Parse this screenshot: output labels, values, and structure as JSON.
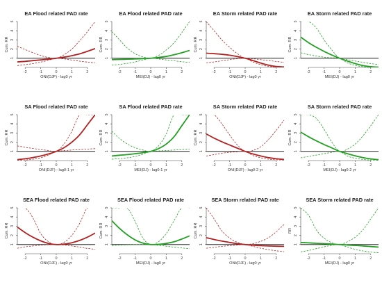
{
  "colors": {
    "ENSO": "#b22222",
    "MEI": "#22a022",
    "reference": "#000000"
  },
  "chart_data": [
    {
      "type": "line",
      "row": 0,
      "col": 0,
      "title": "EA Flood related PAD rate",
      "xlabel": "ONI(DJF) - lag0 yr",
      "ylabel": "Cum. RR",
      "color": "ENSO",
      "xlim": [
        -2.5,
        2.5
      ],
      "ylim": [
        0,
        5
      ],
      "xticks": [
        -2,
        -1,
        0,
        1,
        2
      ],
      "yticks": [
        1,
        2,
        3,
        4,
        5
      ],
      "x": [
        -2.5,
        -2,
        -1.5,
        -1,
        -0.5,
        0,
        0.5,
        1,
        1.5,
        2,
        2.5
      ],
      "series": [
        {
          "role": "estimate",
          "values": [
            0.6,
            0.66,
            0.74,
            0.82,
            0.9,
            1.0,
            1.12,
            1.28,
            1.48,
            1.75,
            2.05
          ]
        },
        {
          "role": "lower",
          "values": [
            0.2,
            0.3,
            0.42,
            0.58,
            0.78,
            1.0,
            0.93,
            0.8,
            0.68,
            0.58,
            0.5
          ]
        },
        {
          "role": "upper",
          "values": [
            2.3,
            1.95,
            1.6,
            1.3,
            1.08,
            1.0,
            1.38,
            2.0,
            2.9,
            3.9,
            5.0
          ]
        }
      ]
    },
    {
      "type": "line",
      "row": 0,
      "col": 1,
      "title": "EA Flood related PAD rate",
      "xlabel": "MEI(DJ) - lag0 yr",
      "ylabel": "Cum. RR",
      "color": "MEI",
      "xlim": [
        -2.5,
        2.5
      ],
      "ylim": [
        0,
        5
      ],
      "xticks": [
        -2,
        -1,
        0,
        1,
        2
      ],
      "yticks": [
        1,
        2,
        3,
        4,
        5
      ],
      "x": [
        -2.5,
        -2,
        -1.5,
        -1,
        -0.5,
        0,
        0.5,
        1,
        1.5,
        2,
        2.5
      ],
      "series": [
        {
          "role": "estimate",
          "values": [
            0.85,
            0.87,
            0.9,
            0.93,
            0.96,
            1.0,
            1.08,
            1.2,
            1.38,
            1.6,
            1.85
          ]
        },
        {
          "role": "lower",
          "values": [
            0.25,
            0.33,
            0.45,
            0.6,
            0.8,
            1.0,
            0.92,
            0.82,
            0.72,
            0.62,
            0.55
          ]
        },
        {
          "role": "upper",
          "values": [
            3.9,
            3.0,
            2.1,
            1.5,
            1.15,
            1.0,
            1.3,
            1.9,
            2.7,
            3.8,
            5.0
          ]
        }
      ]
    },
    {
      "type": "line",
      "row": 0,
      "col": 2,
      "title": "EA Storm related PAD rate",
      "xlabel": "ONI(DJF) - lag0 yr",
      "ylabel": "Cum. RR",
      "color": "ENSO",
      "xlim": [
        -2.5,
        2.5
      ],
      "ylim": [
        0,
        5
      ],
      "xticks": [
        -2,
        -1,
        0,
        1,
        2
      ],
      "yticks": [
        1,
        2,
        3,
        4,
        5
      ],
      "x": [
        -2.5,
        -2,
        -1.5,
        -1,
        -0.5,
        0,
        0.5,
        1,
        1.5,
        2,
        2.5
      ],
      "series": [
        {
          "role": "estimate",
          "values": [
            1.55,
            1.5,
            1.43,
            1.33,
            1.18,
            1.0,
            0.75,
            0.48,
            0.25,
            0.1,
            0.05
          ]
        },
        {
          "role": "lower",
          "values": [
            0.5,
            0.6,
            0.72,
            0.85,
            0.95,
            1.0,
            0.6,
            0.3,
            0.12,
            0.05,
            0.02
          ]
        },
        {
          "role": "upper",
          "values": [
            5.0,
            4.0,
            3.0,
            2.2,
            1.5,
            1.0,
            0.95,
            0.85,
            0.75,
            0.65,
            0.55
          ]
        }
      ]
    },
    {
      "type": "line",
      "row": 0,
      "col": 3,
      "title": "EA Storm related PAD rate",
      "xlabel": "MEI(DJ) - lag0 yr",
      "ylabel": "Cum. RR",
      "color": "MEI",
      "xlim": [
        -2.5,
        2.5
      ],
      "ylim": [
        0,
        5
      ],
      "xticks": [
        -2,
        -1,
        0,
        1,
        2
      ],
      "yticks": [
        1,
        2,
        3,
        4,
        5
      ],
      "x": [
        -2.5,
        -2,
        -1.5,
        -1,
        -0.5,
        0,
        0.5,
        1,
        1.5,
        2,
        2.5
      ],
      "series": [
        {
          "role": "estimate",
          "values": [
            3.3,
            2.7,
            2.2,
            1.75,
            1.35,
            1.0,
            0.7,
            0.42,
            0.2,
            0.08,
            0.03
          ]
        },
        {
          "role": "lower",
          "values": [
            1.6,
            1.4,
            1.25,
            1.12,
            1.05,
            1.0,
            0.5,
            0.22,
            0.08,
            0.03,
            0.01
          ]
        },
        {
          "role": "upper",
          "values": [
            5.0,
            5.0,
            4.3,
            3.0,
            1.9,
            1.0,
            0.85,
            0.7,
            0.55,
            0.42,
            0.32
          ]
        }
      ]
    },
    {
      "type": "line",
      "row": 1,
      "col": 0,
      "title": "SA Flood related PAD rate",
      "xlabel": "ONI(DJF) - lag0-1 yr",
      "ylabel": "Cum. RR",
      "color": "ENSO",
      "xlim": [
        -2.5,
        2.5
      ],
      "ylim": [
        0,
        5
      ],
      "xticks": [
        -2,
        -1,
        0,
        1,
        2
      ],
      "yticks": [
        1,
        2,
        3,
        4,
        5
      ],
      "x": [
        -2.5,
        -2,
        -1.5,
        -1,
        -0.5,
        0,
        0.5,
        1,
        1.5,
        2,
        2.5
      ],
      "series": [
        {
          "role": "estimate",
          "values": [
            0.1,
            0.2,
            0.33,
            0.5,
            0.72,
            1.0,
            1.4,
            2.0,
            2.8,
            3.9,
            5.0
          ]
        },
        {
          "role": "lower",
          "values": [
            0.02,
            0.06,
            0.15,
            0.3,
            0.6,
            1.0,
            1.08,
            1.15,
            1.2,
            1.25,
            1.3
          ]
        },
        {
          "role": "upper",
          "values": [
            1.6,
            1.45,
            1.32,
            1.2,
            1.1,
            1.0,
            1.8,
            3.2,
            5.0,
            5.0,
            5.0
          ]
        }
      ]
    },
    {
      "type": "line",
      "row": 1,
      "col": 1,
      "title": "SA Flood related PAD rate",
      "xlabel": "MEI(DJ) - lag0-1 yr",
      "ylabel": "Cum. RR",
      "color": "MEI",
      "xlim": [
        -2.5,
        2.5
      ],
      "ylim": [
        0,
        5
      ],
      "xticks": [
        -2,
        -1,
        0,
        1,
        2
      ],
      "yticks": [
        1,
        2,
        3,
        4,
        5
      ],
      "x": [
        -2.5,
        -2,
        -1.5,
        -1,
        -0.5,
        0,
        0.5,
        1,
        1.5,
        2,
        2.5
      ],
      "series": [
        {
          "role": "estimate",
          "values": [
            0.5,
            0.58,
            0.65,
            0.75,
            0.86,
            1.0,
            1.3,
            1.8,
            2.6,
            3.8,
            5.0
          ]
        },
        {
          "role": "lower",
          "values": [
            0.15,
            0.22,
            0.3,
            0.45,
            0.7,
            1.0,
            1.05,
            1.1,
            1.15,
            1.2,
            1.25
          ]
        },
        {
          "role": "upper",
          "values": [
            3.2,
            2.4,
            1.8,
            1.4,
            1.15,
            1.0,
            1.6,
            2.9,
            5.0,
            5.0,
            5.0
          ]
        }
      ]
    },
    {
      "type": "line",
      "row": 1,
      "col": 2,
      "title": "SA Storm related PAD rate",
      "xlabel": "ONI(DJF) - lag0-2 yr",
      "ylabel": "Cum. RR",
      "color": "ENSO",
      "xlim": [
        -2.5,
        2.5
      ],
      "ylim": [
        0,
        5
      ],
      "xticks": [
        -2,
        -1,
        0,
        1,
        2
      ],
      "yticks": [
        1,
        2,
        3,
        4,
        5
      ],
      "x": [
        -2.5,
        -2,
        -1.5,
        -1,
        -0.5,
        0,
        0.5,
        1,
        1.5,
        2,
        2.5
      ],
      "series": [
        {
          "role": "estimate",
          "values": [
            2.9,
            2.45,
            2.05,
            1.7,
            1.35,
            1.0,
            0.72,
            0.5,
            0.32,
            0.2,
            0.12
          ]
        },
        {
          "role": "lower",
          "values": [
            0.5,
            0.65,
            0.8,
            0.9,
            0.96,
            1.0,
            0.55,
            0.3,
            0.15,
            0.08,
            0.05
          ]
        },
        {
          "role": "upper",
          "values": [
            5.0,
            5.0,
            4.0,
            2.8,
            1.7,
            1.0,
            1.1,
            1.5,
            2.3,
            3.3,
            4.4
          ]
        }
      ]
    },
    {
      "type": "line",
      "row": 1,
      "col": 3,
      "title": "SA Storm related PAD rate",
      "xlabel": "MEI(DJ) - lag0-2 yr",
      "ylabel": "Cum. RR",
      "color": "MEI",
      "xlim": [
        -2.5,
        2.5
      ],
      "ylim": [
        0,
        5
      ],
      "xticks": [
        -2,
        -1,
        0,
        1,
        2
      ],
      "yticks": [
        1,
        2,
        3,
        4,
        5
      ],
      "x": [
        -2.5,
        -2,
        -1.5,
        -1,
        -0.5,
        0,
        0.5,
        1,
        1.5,
        2,
        2.5
      ],
      "series": [
        {
          "role": "estimate",
          "values": [
            3.1,
            2.6,
            2.15,
            1.75,
            1.38,
            1.0,
            0.75,
            0.52,
            0.32,
            0.18,
            0.1
          ]
        },
        {
          "role": "lower",
          "values": [
            0.3,
            0.45,
            0.6,
            0.75,
            0.9,
            1.0,
            0.5,
            0.25,
            0.12,
            0.06,
            0.03
          ]
        },
        {
          "role": "upper",
          "values": [
            5.0,
            5.0,
            4.6,
            3.4,
            2.0,
            1.0,
            1.25,
            1.8,
            2.7,
            3.8,
            5.0
          ]
        }
      ]
    },
    {
      "type": "line",
      "row": 2,
      "col": 0,
      "title": "SEA Flood related PAD rate",
      "xlabel": "ONI(DJF) - lag0 yr",
      "ylabel": "Cum. RR",
      "color": "ENSO",
      "xlim": [
        -2.5,
        2.5
      ],
      "ylim": [
        0,
        5
      ],
      "xticks": [
        -2,
        -1,
        0,
        1,
        2
      ],
      "yticks": [
        1,
        2,
        3,
        4,
        5
      ],
      "x": [
        -2.5,
        -2,
        -1.5,
        -1,
        -0.5,
        0,
        0.5,
        1,
        1.5,
        2,
        2.5
      ],
      "series": [
        {
          "role": "estimate",
          "values": [
            2.9,
            2.3,
            1.8,
            1.4,
            1.12,
            1.0,
            1.05,
            1.2,
            1.45,
            1.8,
            2.25
          ]
        },
        {
          "role": "lower",
          "values": [
            0.6,
            0.75,
            0.85,
            0.93,
            0.98,
            1.0,
            0.95,
            0.85,
            0.72,
            0.58,
            0.48
          ]
        },
        {
          "role": "upper",
          "values": [
            5.0,
            5.0,
            3.9,
            2.2,
            1.3,
            1.0,
            1.25,
            2.0,
            3.3,
            5.0,
            5.0
          ]
        }
      ]
    },
    {
      "type": "line",
      "row": 2,
      "col": 1,
      "title": "SEA Flood related PAD rate",
      "xlabel": "MEI(DJ) - lag0 yr",
      "ylabel": "Cum. RR",
      "color": "MEI",
      "xlim": [
        -2.5,
        2.5
      ],
      "ylim": [
        0,
        5
      ],
      "xticks": [
        -2,
        -1,
        0,
        1,
        2
      ],
      "yticks": [
        1,
        2,
        3,
        4,
        5
      ],
      "x": [
        -2.5,
        -2,
        -1.5,
        -1,
        -0.5,
        0,
        0.5,
        1,
        1.5,
        2,
        2.5
      ],
      "series": [
        {
          "role": "estimate",
          "values": [
            3.6,
            2.75,
            2.05,
            1.5,
            1.15,
            1.0,
            1.02,
            1.12,
            1.3,
            1.6,
            1.95
          ]
        },
        {
          "role": "lower",
          "values": [
            0.9,
            0.95,
            0.97,
            0.99,
            1.0,
            1.0,
            0.92,
            0.82,
            0.72,
            0.63,
            0.55
          ]
        },
        {
          "role": "upper",
          "values": [
            5.0,
            5.0,
            5.0,
            3.5,
            1.7,
            1.0,
            1.3,
            2.2,
            3.6,
            5.0,
            5.0
          ]
        }
      ]
    },
    {
      "type": "line",
      "row": 2,
      "col": 2,
      "title": "SEA Storm related PAD rate",
      "xlabel": "ONI(DJF) - lag0 yr",
      "ylabel": "Cum. RR",
      "color": "ENSO",
      "xlim": [
        -2.5,
        2.5
      ],
      "ylim": [
        0,
        5
      ],
      "xticks": [
        -2,
        -1,
        0,
        1,
        2
      ],
      "yticks": [
        1,
        2,
        3,
        4,
        5
      ],
      "x": [
        -2.5,
        -2,
        -1.5,
        -1,
        -0.5,
        0,
        0.5,
        1,
        1.5,
        2,
        2.5
      ],
      "series": [
        {
          "role": "estimate",
          "values": [
            1.75,
            1.55,
            1.38,
            1.23,
            1.1,
            1.0,
            0.93,
            0.88,
            0.85,
            0.82,
            0.8
          ]
        },
        {
          "role": "lower",
          "values": [
            0.6,
            0.7,
            0.8,
            0.88,
            0.95,
            1.0,
            0.8,
            0.6,
            0.45,
            0.32,
            0.22
          ]
        },
        {
          "role": "upper",
          "values": [
            5.0,
            3.8,
            2.5,
            1.7,
            1.25,
            1.0,
            1.1,
            1.35,
            1.75,
            2.4,
            3.2
          ]
        }
      ]
    },
    {
      "type": "line",
      "row": 2,
      "col": 3,
      "title": "SEA Storm related PAD rate",
      "xlabel": "MEI(DJ) - lag0 yr",
      "ylabel": "RR",
      "color": "MEI",
      "xlim": [
        -2.5,
        2.5
      ],
      "ylim": [
        0,
        5
      ],
      "xticks": [
        -2,
        -1,
        0,
        1,
        2
      ],
      "yticks": [
        1,
        2,
        3,
        4,
        5
      ],
      "x": [
        -2.5,
        -2,
        -1.5,
        -1,
        -0.5,
        0,
        0.5,
        1,
        1.5,
        2,
        2.5
      ],
      "series": [
        {
          "role": "estimate",
          "values": [
            1.22,
            1.18,
            1.14,
            1.1,
            1.05,
            1.0,
            0.95,
            0.9,
            0.85,
            0.78,
            0.72
          ]
        },
        {
          "role": "lower",
          "values": [
            0.2,
            0.35,
            0.55,
            0.75,
            0.92,
            1.0,
            0.72,
            0.48,
            0.3,
            0.18,
            0.1
          ]
        },
        {
          "role": "upper",
          "values": [
            5.0,
            4.2,
            2.6,
            1.7,
            1.2,
            1.0,
            1.3,
            1.8,
            2.6,
            3.8,
            5.0
          ]
        }
      ]
    }
  ]
}
